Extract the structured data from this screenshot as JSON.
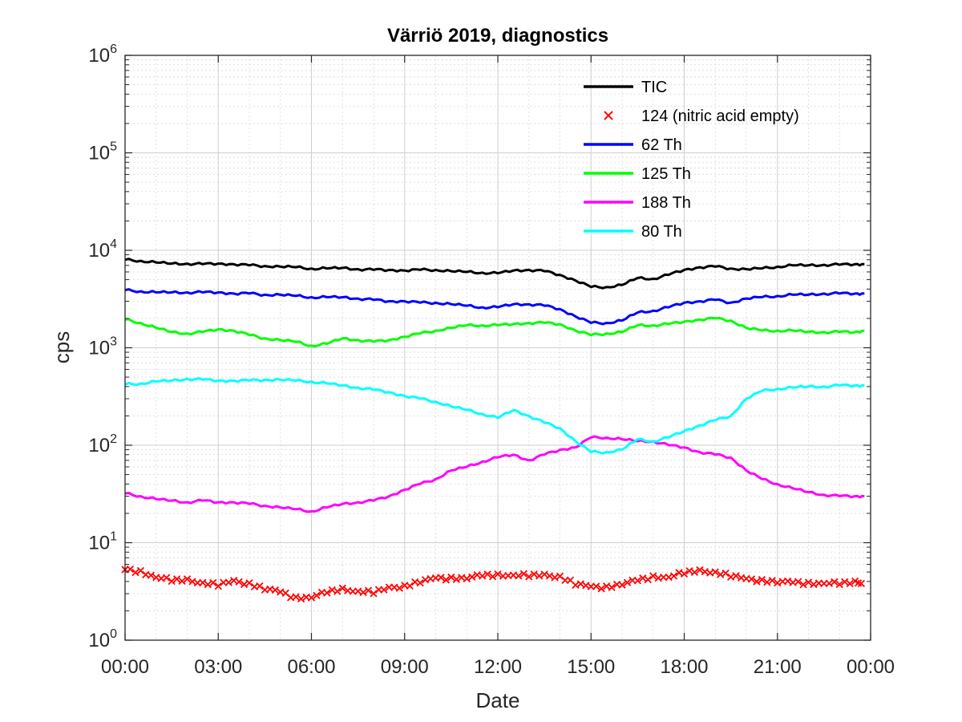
{
  "chart_data": {
    "type": "line",
    "title": "Värriö 2019, diagnostics",
    "xlabel": "Date",
    "ylabel": "cps",
    "yscale": "log",
    "ylim": [
      1,
      1000000
    ],
    "xlim_hours": [
      0,
      24
    ],
    "grid": true,
    "legend_position": "top-right",
    "x_tick_labels": [
      "00:00",
      "03:00",
      "06:00",
      "09:00",
      "12:00",
      "15:00",
      "18:00",
      "21:00",
      "00:00"
    ],
    "y_ticks": [
      {
        "base": "10",
        "exp": "0"
      },
      {
        "base": "10",
        "exp": "1"
      },
      {
        "base": "10",
        "exp": "2"
      },
      {
        "base": "10",
        "exp": "3"
      },
      {
        "base": "10",
        "exp": "4"
      },
      {
        "base": "10",
        "exp": "5"
      },
      {
        "base": "10",
        "exp": "6"
      }
    ],
    "series": [
      {
        "name": "TIC",
        "color": "#000000",
        "style": "line",
        "x": [
          0,
          0.5,
          1,
          1.5,
          2,
          2.5,
          3,
          3.5,
          4,
          4.5,
          5,
          5.5,
          6,
          6.5,
          7,
          7.5,
          8,
          8.5,
          9,
          9.5,
          10,
          10.5,
          11,
          11.5,
          12,
          12.5,
          13,
          13.5,
          14,
          14.5,
          15,
          15.5,
          16,
          16.5,
          17,
          17.5,
          18,
          18.5,
          19,
          19.5,
          20,
          20.5,
          21,
          21.5,
          22,
          22.5,
          23,
          23.5,
          23.8
        ],
        "y": [
          8000,
          7800,
          7500,
          7300,
          7300,
          7200,
          7300,
          7200,
          7000,
          6900,
          6800,
          6700,
          6500,
          6500,
          6600,
          6400,
          6300,
          6300,
          6200,
          6300,
          6300,
          6100,
          6000,
          5900,
          5800,
          6200,
          6300,
          6100,
          5600,
          4900,
          4200,
          4200,
          4400,
          5200,
          5100,
          5600,
          6300,
          6700,
          6800,
          6500,
          6400,
          6500,
          6800,
          7000,
          7000,
          7100,
          7100,
          7200,
          7200
        ]
      },
      {
        "name": "124 (nitric acid empty)",
        "color": "#ff0000",
        "style": "marker-x",
        "x": [
          0,
          0.5,
          1,
          1.5,
          2,
          2.5,
          3,
          3.5,
          4,
          4.5,
          5,
          5.5,
          6,
          6.5,
          7,
          7.5,
          8,
          8.5,
          9,
          9.5,
          10,
          10.5,
          11,
          11.5,
          12,
          12.5,
          13,
          13.5,
          14,
          14.5,
          15,
          15.5,
          16,
          16.5,
          17,
          17.5,
          18,
          18.5,
          19,
          19.5,
          20,
          20.5,
          21,
          21.5,
          22,
          22.5,
          23,
          23.5,
          23.8
        ],
        "y": [
          5.3,
          5,
          4.5,
          4.1,
          4.1,
          3.9,
          3.7,
          4,
          3.8,
          3.4,
          3.1,
          2.7,
          2.8,
          3.1,
          3.3,
          3.2,
          3.1,
          3.4,
          3.6,
          4,
          4.3,
          4.3,
          4.4,
          4.6,
          4.6,
          4.7,
          4.6,
          4.6,
          4.5,
          3.8,
          3.5,
          3.5,
          3.8,
          4.1,
          4.4,
          4.5,
          4.9,
          5.1,
          5,
          4.6,
          4.2,
          4.1,
          4,
          3.9,
          3.8,
          3.9,
          3.8,
          3.9,
          3.9
        ]
      },
      {
        "name": "62 Th",
        "color": "#0000ff",
        "style": "line",
        "x": [
          0,
          0.5,
          1,
          1.5,
          2,
          2.5,
          3,
          3.5,
          4,
          4.5,
          5,
          5.5,
          6,
          6.5,
          7,
          7.5,
          8,
          8.5,
          9,
          9.5,
          10,
          10.5,
          11,
          11.5,
          12,
          12.5,
          13,
          13.5,
          14,
          14.5,
          15,
          15.5,
          16,
          16.5,
          17,
          17.5,
          18,
          18.5,
          19,
          19.5,
          20,
          20.5,
          21,
          21.5,
          22,
          22.5,
          23,
          23.5,
          23.8
        ],
        "y": [
          3900,
          3800,
          3700,
          3700,
          3700,
          3700,
          3700,
          3600,
          3600,
          3500,
          3500,
          3400,
          3300,
          3300,
          3300,
          3200,
          3100,
          3000,
          3000,
          2900,
          2900,
          2800,
          2700,
          2600,
          2600,
          2800,
          2800,
          2700,
          2500,
          2100,
          1800,
          1800,
          1900,
          2300,
          2400,
          2600,
          2900,
          3000,
          3100,
          2900,
          3200,
          3300,
          3400,
          3500,
          3500,
          3600,
          3600,
          3600,
          3600
        ]
      },
      {
        "name": "125 Th",
        "color": "#00ff00",
        "style": "line",
        "x": [
          0,
          0.5,
          1,
          1.5,
          2,
          2.5,
          3,
          3.5,
          4,
          4.5,
          5,
          5.5,
          6,
          6.5,
          7,
          7.5,
          8,
          8.5,
          9,
          9.5,
          10,
          10.5,
          11,
          11.5,
          12,
          12.5,
          13,
          13.5,
          14,
          14.5,
          15,
          15.5,
          16,
          16.5,
          17,
          17.5,
          18,
          18.5,
          19,
          19.5,
          20,
          20.5,
          21,
          21.5,
          22,
          22.5,
          23,
          23.5,
          23.8
        ],
        "y": [
          1950,
          1800,
          1600,
          1450,
          1400,
          1450,
          1550,
          1500,
          1350,
          1250,
          1200,
          1150,
          1050,
          1100,
          1250,
          1200,
          1150,
          1200,
          1300,
          1400,
          1500,
          1600,
          1700,
          1700,
          1700,
          1750,
          1800,
          1800,
          1750,
          1500,
          1350,
          1400,
          1450,
          1700,
          1700,
          1750,
          1850,
          1950,
          2000,
          1900,
          1600,
          1500,
          1500,
          1500,
          1450,
          1450,
          1450,
          1450,
          1500
        ]
      },
      {
        "name": "188 Th",
        "color": "#ff00ff",
        "style": "line",
        "x": [
          0,
          0.5,
          1,
          1.5,
          2,
          2.5,
          3,
          3.5,
          4,
          4.5,
          5,
          5.5,
          6,
          6.5,
          7,
          7.5,
          8,
          8.5,
          9,
          9.5,
          10,
          10.5,
          11,
          11.5,
          12,
          12.5,
          13,
          13.5,
          14,
          14.5,
          15,
          15.5,
          16,
          16.5,
          17,
          17.5,
          18,
          18.5,
          19,
          19.5,
          20,
          20.5,
          21,
          21.5,
          22,
          22.5,
          23,
          23.5,
          23.8
        ],
        "y": [
          32,
          30,
          28,
          27,
          26,
          27,
          26,
          26,
          25,
          24,
          23,
          22,
          21,
          23,
          25,
          26,
          27,
          30,
          35,
          40,
          45,
          55,
          60,
          68,
          75,
          80,
          70,
          80,
          90,
          95,
          120,
          120,
          115,
          110,
          110,
          100,
          95,
          85,
          80,
          75,
          55,
          45,
          40,
          36,
          33,
          31,
          30,
          30,
          30
        ]
      },
      {
        "name": "80 Th",
        "color": "#00ffff",
        "style": "line",
        "x": [
          0,
          0.5,
          1,
          1.5,
          2,
          2.5,
          3,
          3.5,
          4,
          4.5,
          5,
          5.5,
          6,
          6.5,
          7,
          7.5,
          8,
          8.5,
          9,
          9.5,
          10,
          10.5,
          11,
          11.5,
          12,
          12.5,
          13,
          13.5,
          14,
          14.5,
          15,
          15.5,
          16,
          16.5,
          17,
          17.5,
          18,
          18.5,
          19,
          19.5,
          20,
          20.5,
          21,
          21.5,
          22,
          22.5,
          23,
          23.5,
          23.8
        ],
        "y": [
          420,
          430,
          450,
          460,
          480,
          470,
          460,
          460,
          460,
          470,
          470,
          460,
          450,
          430,
          410,
          390,
          370,
          350,
          320,
          300,
          280,
          250,
          230,
          210,
          190,
          230,
          200,
          170,
          150,
          110,
          85,
          85,
          90,
          115,
          110,
          120,
          140,
          160,
          180,
          200,
          300,
          360,
          380,
          390,
          400,
          400,
          410,
          410,
          410
        ]
      }
    ]
  }
}
